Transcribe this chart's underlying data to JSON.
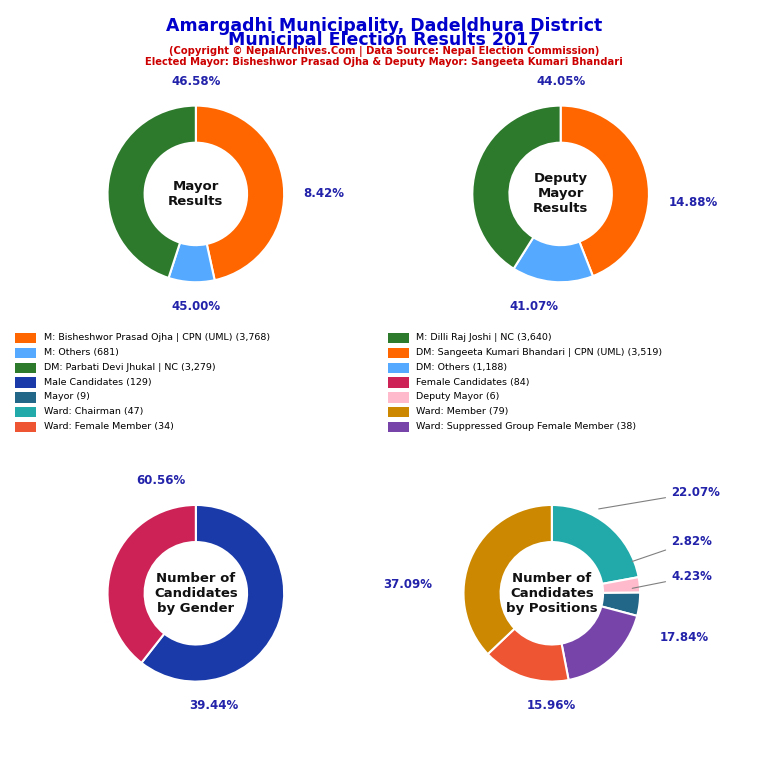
{
  "title_line1": "Amargadhi Municipality, Dadeldhura District",
  "title_line2": "Municipal Election Results 2017",
  "subtitle1": "(Copyright © NepalArchives.Com | Data Source: Nepal Election Commission)",
  "subtitle2": "Elected Mayor: Bisheshwor Prasad Ojha & Deputy Mayor: Sangeeta Kumari Bhandari",
  "title_color": "#0000cc",
  "subtitle_color": "#cc0000",
  "mayor_values": [
    46.58,
    8.42,
    45.0
  ],
  "mayor_colors": [
    "#ff6600",
    "#55aaff",
    "#2d7a2d"
  ],
  "mayor_label": "Mayor\nResults",
  "mayor_pct_labels": [
    "46.58%",
    "8.42%",
    "45.00%"
  ],
  "deputy_values": [
    44.05,
    14.88,
    41.07
  ],
  "deputy_colors": [
    "#ff6600",
    "#55aaff",
    "#2d7a2d"
  ],
  "deputy_label": "Deputy\nMayor\nResults",
  "deputy_pct_labels": [
    "44.05%",
    "14.88%",
    "41.07%"
  ],
  "gender_values": [
    60.56,
    39.44
  ],
  "gender_colors": [
    "#1a3aaa",
    "#cc2255"
  ],
  "gender_label": "Number of\nCandidates\nby Gender",
  "gender_pct_labels": [
    "60.56%",
    "39.44%"
  ],
  "positions_values": [
    22.07,
    2.82,
    4.23,
    17.84,
    15.96,
    37.09
  ],
  "positions_colors": [
    "#22aaaa",
    "#ffbbcc",
    "#226688",
    "#7744aa",
    "#ee5533",
    "#cc8800"
  ],
  "positions_label": "Number of\nCandidates\nby Positions",
  "positions_pct_labels": [
    "22.07%",
    "2.82%",
    "4.23%",
    "17.84%",
    "15.96%",
    "37.09%"
  ],
  "legend_items_left": [
    {
      "label": "M: Bisheshwor Prasad Ojha | CPN (UML) (3,768)",
      "color": "#ff6600"
    },
    {
      "label": "M: Others (681)",
      "color": "#55aaff"
    },
    {
      "label": "DM: Parbati Devi Jhukal | NC (3,279)",
      "color": "#2d7a2d"
    },
    {
      "label": "Male Candidates (129)",
      "color": "#1a3aaa"
    },
    {
      "label": "Mayor (9)",
      "color": "#226688"
    },
    {
      "label": "Ward: Chairman (47)",
      "color": "#22aaaa"
    },
    {
      "label": "Ward: Female Member (34)",
      "color": "#ee5533"
    }
  ],
  "legend_items_right": [
    {
      "label": "M: Dilli Raj Joshi | NC (3,640)",
      "color": "#2d7a2d"
    },
    {
      "label": "DM: Sangeeta Kumari Bhandari | CPN (UML) (3,519)",
      "color": "#ff6600"
    },
    {
      "label": "DM: Others (1,188)",
      "color": "#55aaff"
    },
    {
      "label": "Female Candidates (84)",
      "color": "#cc2255"
    },
    {
      "label": "Deputy Mayor (6)",
      "color": "#ffbbcc"
    },
    {
      "label": "Ward: Member (79)",
      "color": "#cc8800"
    },
    {
      "label": "Ward: Suppressed Group Female Member (38)",
      "color": "#7744aa"
    }
  ]
}
